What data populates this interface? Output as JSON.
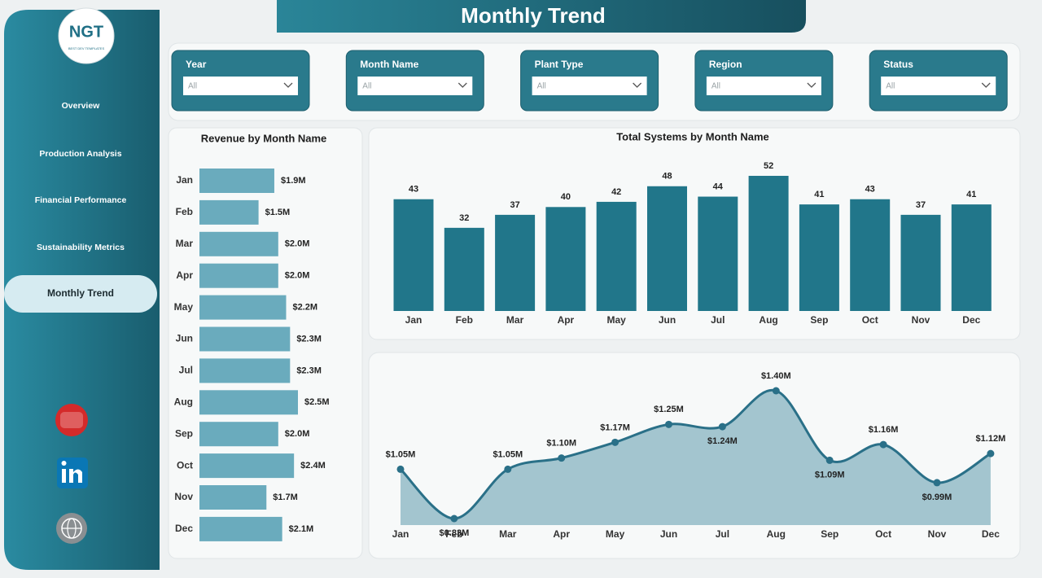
{
  "header": {
    "title": "Monthly Trend"
  },
  "logo": {
    "name": "NGT",
    "tagline": "BEST DEV TEMPLATES"
  },
  "nav": [
    "Overview",
    "Production Analysis",
    "Financial Performance",
    "Sustainability Metrics",
    "Monthly Trend"
  ],
  "active_nav": 4,
  "filters": [
    {
      "label": "Year",
      "value": "All"
    },
    {
      "label": "Month Name",
      "value": "All"
    },
    {
      "label": "Plant Type",
      "value": "All"
    },
    {
      "label": "Region",
      "value": "All"
    },
    {
      "label": "Status",
      "value": "All"
    }
  ],
  "chart_data": [
    {
      "type": "bar",
      "orientation": "horizontal",
      "title": "Revenue by Month Name",
      "categories": [
        "Jan",
        "Feb",
        "Mar",
        "Apr",
        "May",
        "Jun",
        "Jul",
        "Aug",
        "Sep",
        "Oct",
        "Nov",
        "Dec"
      ],
      "values": [
        1900000,
        1500000,
        2000000,
        2000000,
        2200000,
        2300000,
        2300000,
        2500000,
        2000000,
        2400000,
        1700000,
        2100000
      ],
      "value_labels": [
        "$1.9M",
        "$1.5M",
        "$2.0M",
        "$2.0M",
        "$2.2M",
        "$2.3M",
        "$2.3M",
        "$2.5M",
        "$2.0M",
        "$2.4M",
        "$1.7M",
        "$2.1M"
      ],
      "color": "#6aabbd"
    },
    {
      "type": "bar",
      "orientation": "vertical",
      "title": "Total Systems by Month Name",
      "categories": [
        "Jan",
        "Feb",
        "Mar",
        "Apr",
        "May",
        "Jun",
        "Jul",
        "Aug",
        "Sep",
        "Oct",
        "Nov",
        "Dec"
      ],
      "values": [
        43,
        32,
        37,
        40,
        42,
        48,
        44,
        52,
        41,
        43,
        37,
        41
      ],
      "color": "#21768a"
    },
    {
      "type": "area",
      "categories": [
        "Jan",
        "Feb",
        "Mar",
        "Apr",
        "May",
        "Jun",
        "Jul",
        "Aug",
        "Sep",
        "Oct",
        "Nov",
        "Dec"
      ],
      "values": [
        1050000,
        830000,
        1050000,
        1100000,
        1170000,
        1250000,
        1240000,
        1400000,
        1090000,
        1160000,
        990000,
        1120000
      ],
      "value_labels": [
        "$1.05M",
        "$0.83M",
        "$1.05M",
        "$1.10M",
        "$1.17M",
        "$1.25M",
        "$1.24M",
        "$1.40M",
        "$1.09M",
        "$1.16M",
        "$0.99M",
        "$1.12M"
      ],
      "color": "#2a7088",
      "fill": "#a3c5cf"
    }
  ]
}
